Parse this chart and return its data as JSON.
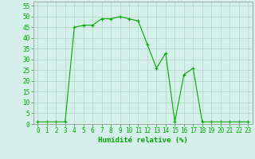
{
  "x": [
    0,
    1,
    2,
    3,
    4,
    5,
    6,
    7,
    8,
    9,
    10,
    11,
    12,
    13,
    14,
    15,
    16,
    17,
    18,
    19,
    20,
    21,
    22,
    23
  ],
  "y": [
    1,
    1,
    1,
    1,
    45,
    46,
    46,
    49,
    49,
    50,
    49,
    48,
    37,
    26,
    33,
    1,
    23,
    26,
    1,
    1,
    1,
    1,
    1,
    1
  ],
  "line_color": "#00aa00",
  "marker": "+",
  "marker_size": 3,
  "bg_color": "#d5f0ea",
  "grid_color": "#aaccbb",
  "xlabel": "Humidité relative (%)",
  "xlabel_color": "#00aa00",
  "ylabel_ticks": [
    0,
    5,
    10,
    15,
    20,
    25,
    30,
    35,
    40,
    45,
    50,
    55
  ],
  "xlim": [
    -0.5,
    23.5
  ],
  "ylim": [
    0,
    57
  ],
  "tick_fontsize": 5.5,
  "xlabel_fontsize": 6.5
}
